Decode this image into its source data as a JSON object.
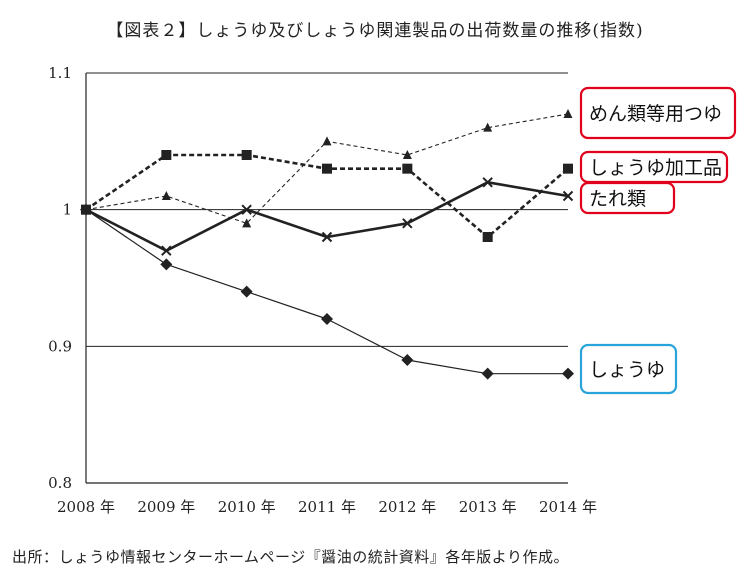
{
  "title": "【図表２】しょうゆ及びしょうゆ関連製品の出荷数量の推移(指数)",
  "source": "出所：しょうゆ情報センターホームページ『醤油の統計資料』各年版より作成。",
  "chart_data": {
    "type": "line",
    "title": "【図表２】しょうゆ及びしょうゆ関連製品の出荷数量の推移(指数)",
    "categories": [
      "2008 年",
      "2009 年",
      "2010 年",
      "2011 年",
      "2012 年",
      "2013 年",
      "2014 年"
    ],
    "ylim": [
      0.8,
      1.1
    ],
    "yticks": [
      "0.8",
      "0.9",
      "1",
      "1.1"
    ],
    "ytick_values": [
      0.8,
      0.9,
      1.0,
      1.1
    ],
    "series": [
      {
        "name": "めん類等用つゆ",
        "values": [
          1.0,
          1.01,
          0.99,
          1.05,
          1.04,
          1.06,
          1.07
        ],
        "marker": "triangle",
        "line": "thin-dashed",
        "box_color": "#e0001b"
      },
      {
        "name": "しょうゆ加工品",
        "values": [
          1.0,
          1.04,
          1.04,
          1.03,
          1.03,
          0.98,
          1.03
        ],
        "marker": "square",
        "line": "thick-dashed",
        "box_color": "#e0001b"
      },
      {
        "name": "たれ類",
        "values": [
          1.0,
          0.97,
          1.0,
          0.98,
          0.99,
          1.02,
          1.01
        ],
        "marker": "x",
        "line": "thick-solid",
        "box_color": "#e0001b"
      },
      {
        "name": "しょうゆ",
        "values": [
          1.0,
          0.96,
          0.94,
          0.92,
          0.89,
          0.88,
          0.88
        ],
        "marker": "diamond",
        "line": "thin-solid",
        "box_color": "#29a3d8"
      }
    ]
  }
}
